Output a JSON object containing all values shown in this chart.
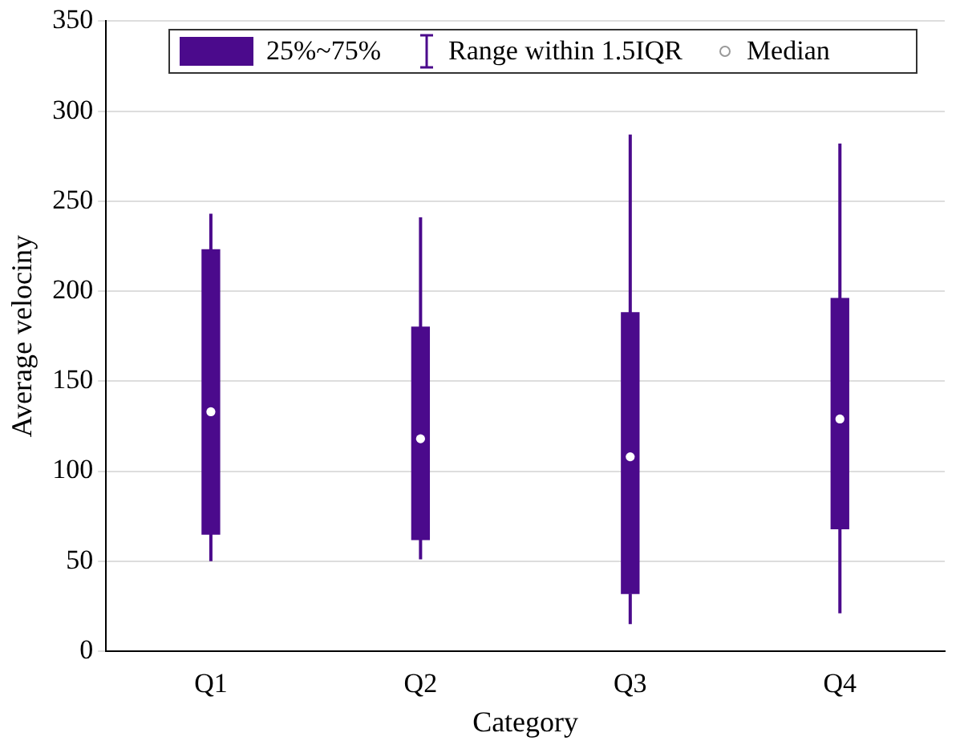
{
  "chart_data": {
    "type": "box",
    "xlabel": "Category",
    "ylabel": "Average velociny",
    "categories": [
      "Q1",
      "Q2",
      "Q3",
      "Q4"
    ],
    "series": [
      {
        "name": "25%~75%",
        "color": "#4b0a8c",
        "boxes": [
          {
            "low": 50,
            "q1": 65,
            "median": 133,
            "q3": 223,
            "high": 243
          },
          {
            "low": 51,
            "q1": 62,
            "median": 118,
            "q3": 180,
            "high": 241
          },
          {
            "low": 15,
            "q1": 32,
            "median": 108,
            "q3": 188,
            "high": 287
          },
          {
            "low": 21,
            "q1": 68,
            "median": 129,
            "q3": 196,
            "high": 282
          }
        ]
      }
    ],
    "annotations": [
      "Range within 1.5IQR",
      "Median"
    ],
    "ylim": [
      0,
      350
    ],
    "yticks": [
      0,
      50,
      100,
      150,
      200,
      250,
      300,
      350
    ],
    "grid": "y",
    "legend": "top"
  }
}
